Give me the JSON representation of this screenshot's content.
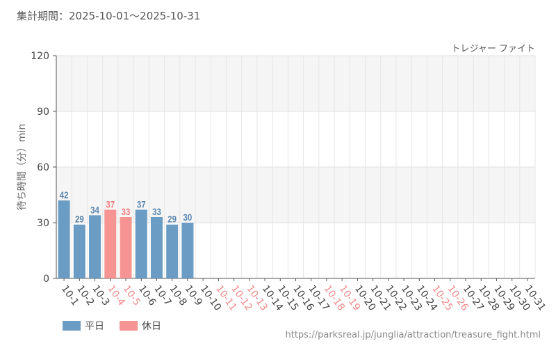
{
  "period_label": "集計期間：2025-10-01～2025-10-31",
  "source_url": "https://parksreal.jp/junglia/attraction/treasure_fight.html",
  "legend": [
    {
      "label": "平日",
      "color": "#6a9cc4"
    },
    {
      "label": "休日",
      "color": "#f69494"
    }
  ],
  "colors": {
    "weekday_bar": "#6a9cc4",
    "holiday_bar": "#f69494",
    "weekday_label": "#5b87b0",
    "holiday_label": "#ef7b7b",
    "holiday_tick": "#f08a8a",
    "tick": "#444444"
  },
  "chart_data": {
    "type": "bar",
    "title": "トレジャー ファイト",
    "ylabel": "待ち時間（分）min",
    "xlabel": "",
    "ylim": [
      0,
      120
    ],
    "yticks": [
      0,
      30,
      60,
      90,
      120
    ],
    "grid": true,
    "legend_position": "bottom-left",
    "categories": [
      "10-1",
      "10-2",
      "10-3",
      "10-4",
      "10-5",
      "10-6",
      "10-7",
      "10-8",
      "10-9",
      "10-10",
      "10-11",
      "10-12",
      "10-13",
      "10-14",
      "10-15",
      "10-16",
      "10-17",
      "10-18",
      "10-19",
      "10-20",
      "10-21",
      "10-22",
      "10-23",
      "10-24",
      "10-25",
      "10-26",
      "10-27",
      "10-28",
      "10-29",
      "10-30",
      "10-31"
    ],
    "holidays": [
      "10-4",
      "10-5",
      "10-11",
      "10-12",
      "10-13",
      "10-18",
      "10-19",
      "10-25",
      "10-26"
    ],
    "values": [
      42,
      29,
      34,
      37,
      33,
      37,
      33,
      29,
      30,
      null,
      null,
      null,
      null,
      null,
      null,
      null,
      null,
      null,
      null,
      null,
      null,
      null,
      null,
      null,
      null,
      null,
      null,
      null,
      null,
      null,
      null
    ]
  }
}
